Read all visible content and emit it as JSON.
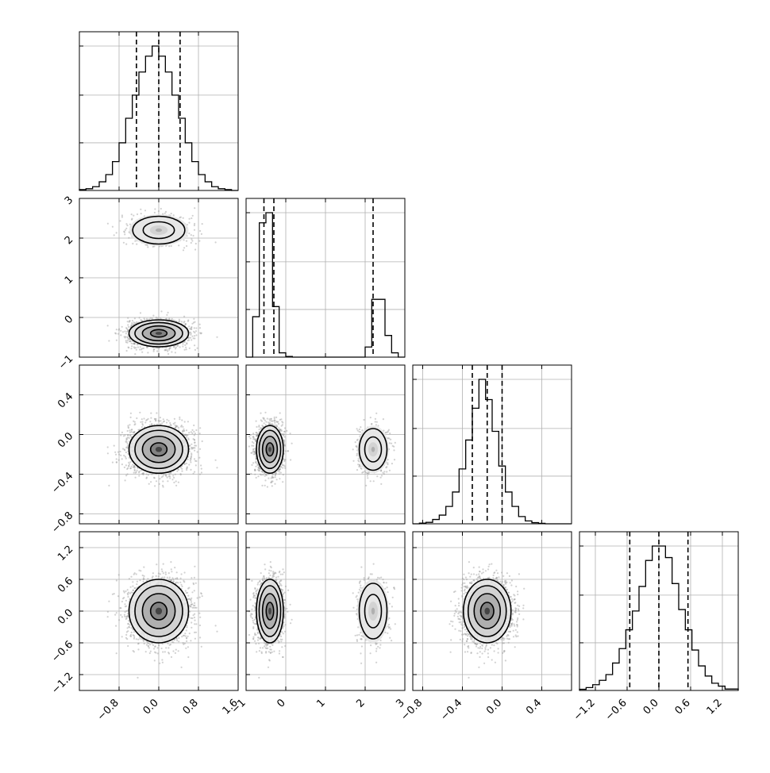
{
  "chart_data": {
    "type": "corner",
    "grid": true,
    "density_style": "filled 2D histogram with black contour lines over grey scatter points",
    "parameters": [
      {
        "index": 0,
        "range": [
          -1.6,
          1.6
        ],
        "ticks": [
          -0.8,
          0.0,
          0.8,
          1.6
        ],
        "tick_labels": [
          "−0.8",
          "0.0",
          "0.8",
          "1.6"
        ],
        "quantiles": [
          -0.45,
          0.0,
          0.43
        ],
        "histogram": {
          "bins": 24,
          "counts": [
            0.6,
            1.2,
            2.6,
            6,
            11,
            20,
            33,
            50,
            66,
            82,
            93,
            100,
            93,
            82,
            66,
            50,
            33,
            20,
            11,
            6,
            2.6,
            1.2,
            0.6,
            0
          ]
        }
      },
      {
        "index": 1,
        "range": [
          -1,
          3
        ],
        "ticks": [
          -1,
          0,
          1,
          2,
          3
        ],
        "tick_labels": [
          "−1",
          "0",
          "1",
          "2",
          "3"
        ],
        "quantiles": [
          -0.55,
          -0.3,
          2.2
        ],
        "histogram": {
          "bins": 24,
          "counts": [
            0,
            28,
            93,
            100,
            35,
            3,
            0.5,
            0,
            0,
            0,
            0,
            0,
            0,
            0,
            0,
            0,
            0,
            0,
            7,
            40,
            40,
            15,
            3,
            0
          ]
        },
        "modes": [
          {
            "center": -0.4,
            "sd": 0.17,
            "weight": 0.75
          },
          {
            "center": 2.2,
            "sd": 0.2,
            "weight": 0.25
          }
        ]
      },
      {
        "index": 2,
        "range": [
          -0.9,
          0.7
        ],
        "ticks": [
          -0.8,
          -0.4,
          0.0,
          0.4
        ],
        "tick_labels": [
          "−0.8",
          "−0.4",
          "0.0",
          "0.4"
        ],
        "quantiles": [
          -0.3,
          -0.15,
          0.0
        ],
        "histogram": {
          "bins": 24,
          "counts": [
            0,
            0.5,
            1,
            3,
            6,
            12,
            22,
            38,
            58,
            80,
            100,
            86,
            64,
            40,
            22,
            12,
            5,
            2,
            0.8,
            0.3,
            0,
            0,
            0,
            0
          ]
        }
      },
      {
        "index": 3,
        "range": [
          -1.5,
          1.5
        ],
        "ticks": [
          -1.2,
          -0.6,
          0.0,
          0.6,
          1.2
        ],
        "tick_labels": [
          "−1.2",
          "−0.6",
          "0.0",
          "0.6",
          "1.2"
        ],
        "quantiles": [
          -0.55,
          0.0,
          0.55
        ],
        "histogram": {
          "bins": 24,
          "counts": [
            0.8,
            2,
            4,
            7,
            11,
            19,
            29,
            42,
            55,
            72,
            90,
            100,
            100,
            92,
            74,
            56,
            42,
            28,
            17,
            10,
            5,
            3,
            1,
            1
          ]
        }
      }
    ],
    "correlations": "uncorrelated; parameter 1 bimodal with modes near -0.4 and 2.2"
  }
}
